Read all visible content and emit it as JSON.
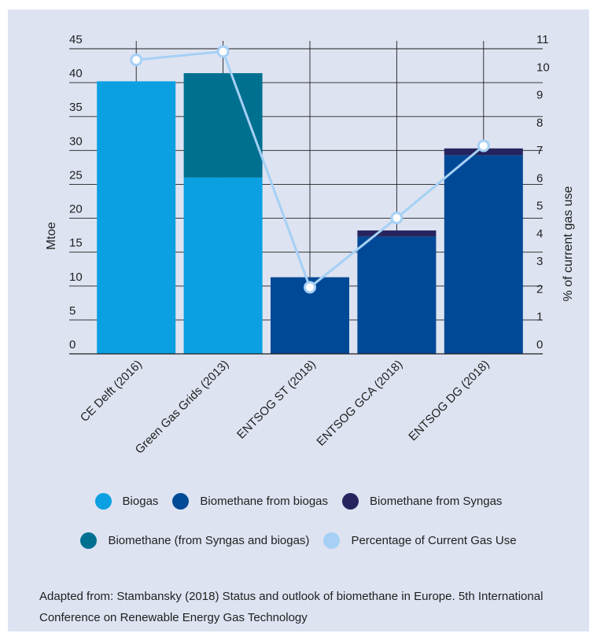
{
  "chart_data": {
    "type": "bar",
    "stacked": true,
    "categories": [
      "CE Delft (2016)",
      "Green Gas Grids (2013)",
      "ENTSOG ST (2018)",
      "ENTSOG GCA (2018)",
      "ENTSOG DG (2018)"
    ],
    "series": [
      {
        "name": "Biogas",
        "values": [
          40.2,
          26.0,
          0,
          0,
          0
        ],
        "color": "#0aa0e1"
      },
      {
        "name": "Biomethane from biogas",
        "values": [
          0,
          0,
          11.3,
          17.3,
          29.3
        ],
        "color": "#004996"
      },
      {
        "name": "Biomethane from Syngas",
        "values": [
          0,
          0,
          0,
          0.9,
          1.0
        ],
        "color": "#26235e"
      },
      {
        "name": "Biomethane (from Syngas and biogas)",
        "values": [
          0,
          15.4,
          0,
          0,
          0
        ],
        "color": "#007091"
      }
    ],
    "line": {
      "name": "Percentage of Current Gas Use",
      "axis": "right",
      "values": [
        10.6,
        10.9,
        2.4,
        4.9,
        7.5
      ],
      "color": "#a6d0f5"
    },
    "ylabel": "Mtoe",
    "ylim": [
      0,
      45
    ],
    "yticks": [
      0,
      5,
      10,
      15,
      20,
      25,
      30,
      35,
      40,
      45
    ],
    "y2label": "% of current gas use",
    "y2lim": [
      0,
      11
    ],
    "y2ticks": [
      0,
      1,
      2,
      3,
      4,
      5,
      6,
      7,
      8,
      9,
      10,
      11
    ],
    "grid": true,
    "legend_position": "bottom"
  },
  "legend": {
    "row1": [
      {
        "label": "Biogas",
        "color": "#0aa0e1"
      },
      {
        "label": "Biomethane from biogas",
        "color": "#004996"
      },
      {
        "label": "Biomethane from Syngas",
        "color": "#26235e"
      }
    ],
    "row2": [
      {
        "label": "Biomethane (from Syngas and biogas)",
        "color": "#007091"
      },
      {
        "label": "Percentage of Current Gas Use",
        "color": "#a6d0f5"
      }
    ]
  },
  "source_text": "Adapted from: Stambansky (2018) Status and outlook of biomethane in Europe. 5th International Conference on Renewable Energy Gas Technology"
}
